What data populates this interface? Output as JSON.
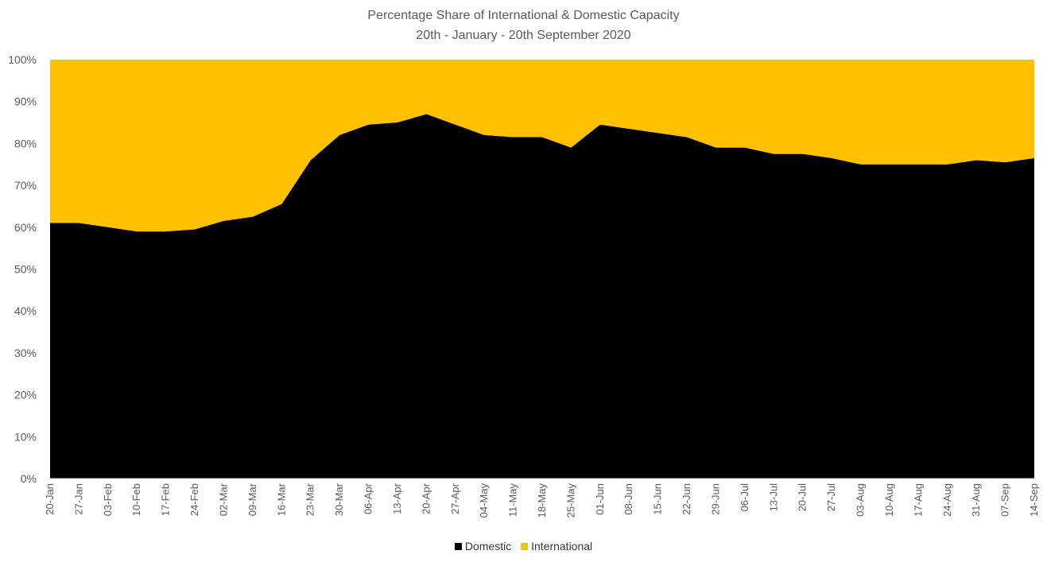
{
  "chart_data": {
    "type": "area",
    "stacked": "percent",
    "title": "Percentage Share of International & Domestic Capacity",
    "subtitle": "20th - January - 20th September 2020",
    "xlabel": "",
    "ylabel": "",
    "ylim": [
      0,
      100
    ],
    "y_ticks": [
      "0%",
      "10%",
      "20%",
      "30%",
      "40%",
      "50%",
      "60%",
      "70%",
      "80%",
      "90%",
      "100%"
    ],
    "grid": false,
    "legend_position": "bottom",
    "categories": [
      "20-Jan",
      "27-Jan",
      "03-Feb",
      "10-Feb",
      "17-Feb",
      "24-Feb",
      "02-Mar",
      "09-Mar",
      "16-Mar",
      "23-Mar",
      "30-Mar",
      "06-Apr",
      "13-Apr",
      "20-Apr",
      "27-Apr",
      "04-May",
      "11-May",
      "18-May",
      "25-May",
      "01-Jun",
      "08-Jun",
      "15-Jun",
      "22-Jun",
      "29-Jun",
      "06-Jul",
      "13-Jul",
      "20-Jul",
      "27-Jul",
      "03-Aug",
      "10-Aug",
      "17-Aug",
      "24-Aug",
      "31-Aug",
      "07-Sep",
      "14-Sep"
    ],
    "series": [
      {
        "name": "Domestic",
        "color": "#000000",
        "values": [
          61,
          61,
          60,
          59,
          59,
          59.5,
          61.5,
          62.5,
          65.5,
          76,
          82,
          84.5,
          85,
          87,
          84.5,
          82,
          81.5,
          81.5,
          79,
          84.5,
          83.5,
          82.5,
          81.5,
          79,
          79,
          77.5,
          77.5,
          76.5,
          75,
          75,
          75,
          75,
          76,
          75.5,
          76.5
        ]
      },
      {
        "name": "International",
        "color": "#FFC000",
        "values": [
          39,
          39,
          40,
          41,
          41,
          40.5,
          38.5,
          37.5,
          34.5,
          24,
          18,
          15.5,
          15,
          13,
          15.5,
          18,
          18.5,
          18.5,
          21,
          15.5,
          16.5,
          17.5,
          18.5,
          21,
          21,
          22.5,
          22.5,
          23.5,
          25,
          25,
          25,
          25,
          24,
          24.5,
          23.5
        ]
      }
    ]
  }
}
